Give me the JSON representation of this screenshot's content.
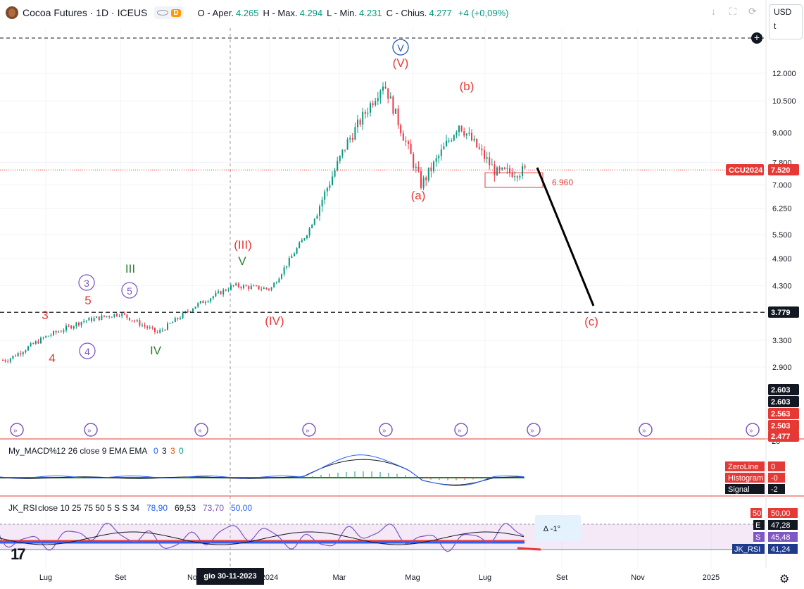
{
  "header": {
    "symbol_title": "Cocoa Futures · 1D · ICEUS",
    "visibility_badge": "D",
    "ohlc": [
      {
        "k": "O - Aper.",
        "v": "4.265"
      },
      {
        "k": "H - Max.",
        "v": "4.294"
      },
      {
        "k": "L - Min.",
        "v": "4.231"
      },
      {
        "k": "C - Chius.",
        "v": "4.277"
      },
      {
        "k": "",
        "v": "+4 (+0,09%)"
      }
    ]
  },
  "currency_menu": {
    "selected": "USD",
    "unit": "t"
  },
  "chart_data": {
    "type": "candlestick",
    "instrument": "Cocoa Futures",
    "timeframe": "1D",
    "exchange": "ICEUS",
    "x_axis_ticks": [
      "Lug",
      "Set",
      "No",
      "2024",
      "Mar",
      "Mag",
      "Lug",
      "Set",
      "Nov",
      "2025"
    ],
    "y_axis_scale": "log",
    "y_axis_ticks": [
      "12.000",
      "10.500",
      "9.000",
      "7.800",
      "7.000",
      "6.250",
      "5.500",
      "4.900",
      "4.300",
      "3.300",
      "2.900"
    ],
    "price_anchors": [
      {
        "date": "Jun 2023",
        "price": 3000
      },
      {
        "date": "Jul 2023",
        "price": 3350
      },
      {
        "date": "Aug 2023",
        "price": 3620
      },
      {
        "date": "Sep 2023",
        "price": 3760
      },
      {
        "date": "Oct 2023",
        "price": 3420
      },
      {
        "date": "Nov 2023",
        "price": 3900
      },
      {
        "date": "Dec 2023",
        "price": 4300
      },
      {
        "date": "Jan 2024",
        "price": 4230
      },
      {
        "date": "Feb 2024",
        "price": 5600
      },
      {
        "date": "Mar 2024",
        "price": 8500
      },
      {
        "date": "Apr 2024",
        "price": 11500
      },
      {
        "date": "May 2024",
        "price": 7000
      },
      {
        "date": "Jun 2024",
        "price": 9400
      },
      {
        "date": "Jul 2024",
        "price": 7400
      },
      {
        "date": "Aug 2024",
        "price": 7520
      }
    ],
    "price_labels": [
      {
        "text": "CCU2024",
        "color": "#e53935"
      },
      {
        "text": "7.520",
        "color": "#e53935"
      },
      {
        "text": "3.779",
        "color": "#131722"
      },
      {
        "text": "2.603",
        "color": "#131722"
      },
      {
        "text": "2.603",
        "color": "#131722"
      },
      {
        "text": "2.563",
        "color": "#e53935"
      },
      {
        "text": "2.503",
        "color": "#e53935"
      },
      {
        "text": "2.477",
        "color": "#e53935"
      }
    ],
    "horizontal_levels": [
      "3.779"
    ],
    "target_label": "6.960",
    "wave_labels": [
      {
        "text": "V",
        "color": "#1e56b6",
        "circled": true
      },
      {
        "text": "(V)",
        "color": "#e53935"
      },
      {
        "text": "(b)",
        "color": "#e53935"
      },
      {
        "text": "(a)",
        "color": "#e53935"
      },
      {
        "text": "(c)",
        "color": "#e53935"
      },
      {
        "text": "(III)",
        "color": "#e53935"
      },
      {
        "text": "V",
        "color": "#2e7d32"
      },
      {
        "text": "(IV)",
        "color": "#e53935"
      },
      {
        "text": "III",
        "color": "#2e7d32"
      },
      {
        "text": "IV",
        "color": "#2e7d32"
      },
      {
        "text": "3",
        "color": "#7e57c2",
        "circled": true
      },
      {
        "text": "5",
        "color": "#7e57c2",
        "circled": true
      },
      {
        "text": "4",
        "color": "#7e57c2",
        "circled": true
      },
      {
        "text": "3",
        "color": "#e53935"
      },
      {
        "text": "5",
        "color": "#e53935"
      },
      {
        "text": "4",
        "color": "#e53935"
      }
    ],
    "macd": {
      "title": "My_MACD%",
      "params": "12 26 close 9 EMA EMA",
      "values": [
        "0",
        "3",
        "3",
        "0"
      ],
      "legend": [
        {
          "name": "ZeroLine",
          "value": "0"
        },
        {
          "name": "Histogram",
          "value": "-0"
        },
        {
          "name": "Signal",
          "value": "-2"
        }
      ],
      "scale_top": "20"
    },
    "rsi": {
      "title": "JK_RSI",
      "params": "close 10 25 75 50 5 S S 34",
      "values": [
        "78,90",
        "69,53",
        "73,70",
        "50,00"
      ],
      "legend": [
        {
          "name": "50",
          "value": "50,00"
        },
        {
          "name": "E",
          "value": "47,28"
        },
        {
          "name": "S",
          "value": "45,48"
        },
        {
          "name": "JK_RSI",
          "value": "41,24"
        }
      ],
      "box_label": "∆ -1°"
    }
  },
  "date_cursor": "gio 30-11-2023"
}
